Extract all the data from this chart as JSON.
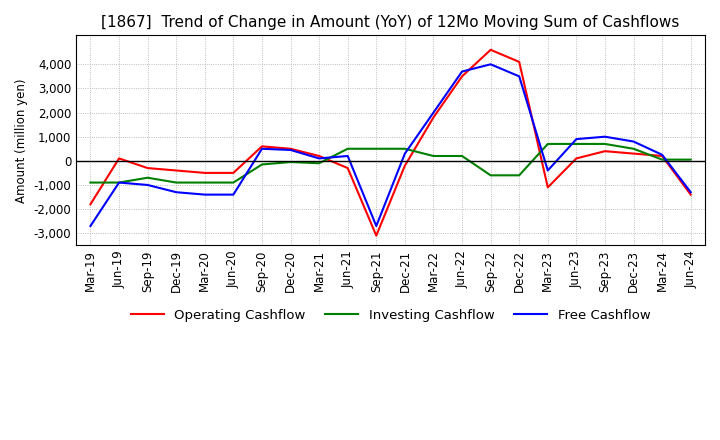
{
  "title": "[1867]  Trend of Change in Amount (YoY) of 12Mo Moving Sum of Cashflows",
  "ylabel": "Amount (million yen)",
  "x_labels": [
    "Mar-19",
    "Jun-19",
    "Sep-19",
    "Dec-19",
    "Mar-20",
    "Jun-20",
    "Sep-20",
    "Dec-20",
    "Mar-21",
    "Jun-21",
    "Sep-21",
    "Dec-21",
    "Mar-22",
    "Jun-22",
    "Sep-22",
    "Dec-22",
    "Mar-23",
    "Jun-23",
    "Sep-23",
    "Dec-23",
    "Mar-24",
    "Jun-24"
  ],
  "operating": [
    -1800,
    100,
    -300,
    -400,
    -500,
    -500,
    600,
    500,
    200,
    -300,
    -3100,
    -200,
    1800,
    3500,
    4600,
    4100,
    -1100,
    100,
    400,
    300,
    200,
    -1400
  ],
  "investing": [
    -900,
    -900,
    -700,
    -900,
    -900,
    -900,
    -150,
    -50,
    -100,
    500,
    500,
    500,
    200,
    200,
    -600,
    -600,
    700,
    700,
    700,
    500,
    50,
    50
  ],
  "free": [
    -2700,
    -900,
    -1000,
    -1300,
    -1400,
    -1400,
    500,
    450,
    100,
    200,
    -2700,
    300,
    2000,
    3700,
    4000,
    3500,
    -400,
    900,
    1000,
    800,
    250,
    -1300
  ],
  "operating_color": "#ff0000",
  "investing_color": "#008000",
  "free_color": "#0000ff",
  "ylim": [
    -3500,
    5200
  ],
  "yticks": [
    -3000,
    -2000,
    -1000,
    0,
    1000,
    2000,
    3000,
    4000
  ],
  "grid_color": "#aaaaaa",
  "bg_color": "#ffffff",
  "title_fontsize": 11,
  "axis_fontsize": 8.5,
  "legend_fontsize": 9.5
}
